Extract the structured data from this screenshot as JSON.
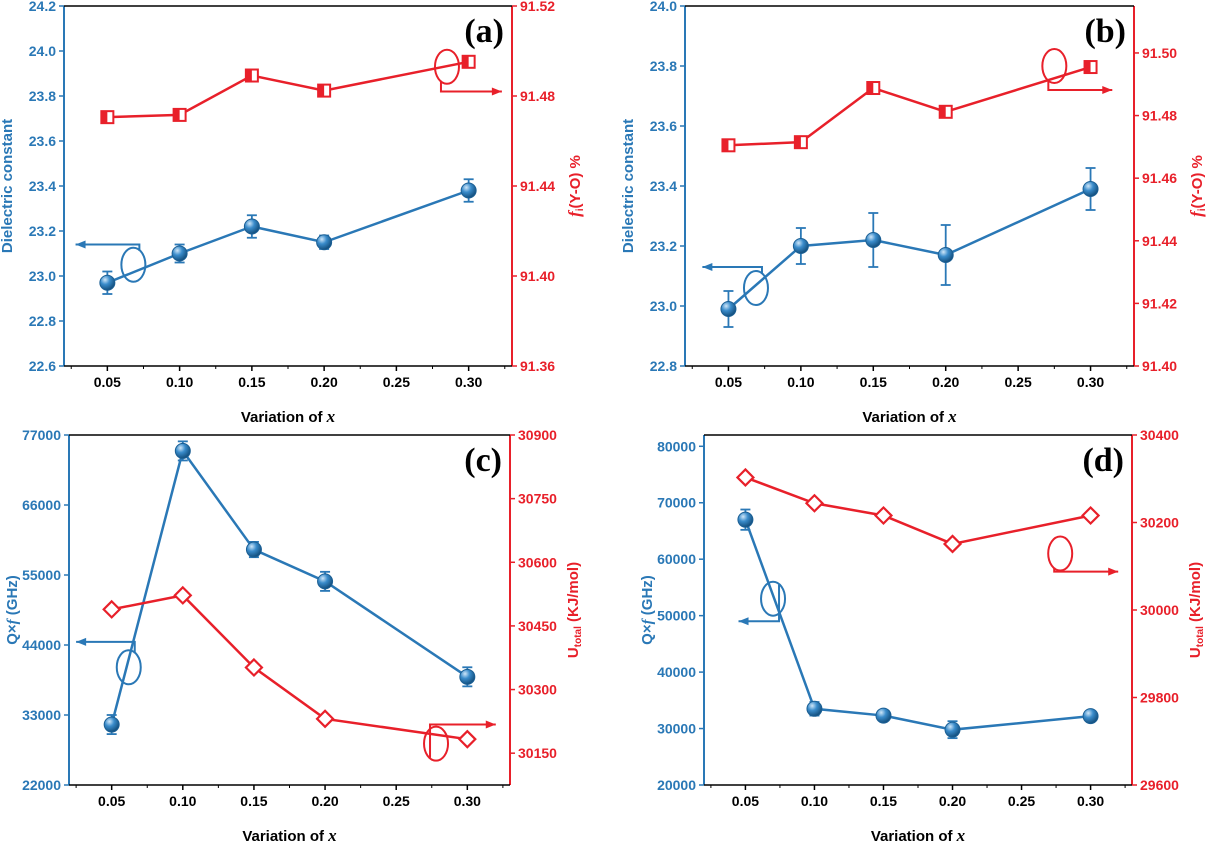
{
  "colors": {
    "left": "#2a78b6",
    "right": "#e8202a",
    "frame": "#000000"
  },
  "chart_data": [
    {
      "type": "line",
      "panel": "(a)",
      "xlabel": "Variation of x",
      "x_ticks": [
        "0.05",
        "0.10",
        "0.15",
        "0.20",
        "0.25",
        "0.30"
      ],
      "xlim": [
        0.02,
        0.33
      ],
      "left_axis": {
        "label": "Dielectric constant",
        "ylim": [
          22.6,
          24.2
        ],
        "ticks": [
          "22.6",
          "22.8",
          "23.0",
          "23.2",
          "23.4",
          "23.6",
          "23.8",
          "24.0",
          "24.2"
        ]
      },
      "right_axis": {
        "label_parts": [
          "f",
          "i",
          "(Y-O) %"
        ],
        "ylim": [
          91.36,
          91.52
        ],
        "ticks": [
          "91.36",
          "91.40",
          "91.44",
          "91.48",
          "91.52"
        ]
      },
      "series": [
        {
          "name": "Dielectric constant",
          "axis": "left",
          "marker": "sphere",
          "x": [
            0.05,
            0.1,
            0.15,
            0.2,
            0.3
          ],
          "values": [
            22.97,
            23.1,
            23.22,
            23.15,
            23.38
          ],
          "errors": [
            0.05,
            0.04,
            0.05,
            0.03,
            0.05
          ]
        },
        {
          "name": "fi(Y-O) %",
          "axis": "right",
          "marker": "half-square",
          "x": [
            0.05,
            0.1,
            0.15,
            0.2,
            0.3
          ],
          "values": [
            91.4706,
            91.4716,
            91.4891,
            91.4824,
            91.4952
          ]
        }
      ],
      "annotations": [
        {
          "kind": "left-pointer",
          "ellipse_at": {
            "x": 0.068,
            "y": 23.05
          },
          "arrow_to": {
            "x": 0.028,
            "y": 23.14
          }
        },
        {
          "kind": "right-pointer",
          "ellipse_at": {
            "x": 0.285,
            "y": 23.93
          },
          "arrow_to": {
            "x": 0.323,
            "y": 23.82
          }
        }
      ]
    },
    {
      "type": "line",
      "panel": "(b)",
      "xlabel": "Variation of x",
      "x_ticks": [
        "0.05",
        "0.10",
        "0.15",
        "0.20",
        "0.25",
        "0.30"
      ],
      "xlim": [
        0.02,
        0.33
      ],
      "left_axis": {
        "label": "Dielectric constant",
        "ylim": [
          22.8,
          24.0
        ],
        "ticks": [
          "22.8",
          "23.0",
          "23.2",
          "23.4",
          "23.6",
          "23.8",
          "24.0"
        ]
      },
      "right_axis": {
        "label_parts": [
          "f",
          "i",
          "(Y-O) %"
        ],
        "ylim": [
          91.4,
          91.515
        ],
        "ticks": [
          "91.40",
          "91.42",
          "91.44",
          "91.46",
          "91.48",
          "91.50"
        ]
      },
      "series": [
        {
          "name": "Dielectric constant",
          "axis": "left",
          "marker": "sphere",
          "x": [
            0.05,
            0.1,
            0.15,
            0.2,
            0.3
          ],
          "values": [
            22.99,
            23.2,
            23.22,
            23.17,
            23.39
          ],
          "errors": [
            0.06,
            0.06,
            0.09,
            0.1,
            0.07
          ]
        },
        {
          "name": "fi(Y-O) %",
          "axis": "right",
          "marker": "half-square",
          "x": [
            0.05,
            0.1,
            0.15,
            0.2,
            0.3
          ],
          "values": [
            91.4705,
            91.4715,
            91.4888,
            91.4812,
            91.4955
          ]
        }
      ],
      "annotations": [
        {
          "kind": "left-pointer",
          "ellipse_at": {
            "x": 0.069,
            "y": 23.06
          },
          "arrow_to": {
            "x": 0.032,
            "y": 23.13
          }
        },
        {
          "kind": "right-pointer",
          "ellipse_at": {
            "x": 0.275,
            "y": 23.8
          },
          "arrow_to": {
            "x": 0.315,
            "y": 23.72
          }
        }
      ]
    },
    {
      "type": "line",
      "panel": "(c)",
      "xlabel": "Variation of x",
      "x_ticks": [
        "0.05",
        "0.10",
        "0.15",
        "0.20",
        "0.25",
        "0.30"
      ],
      "xlim": [
        0.02,
        0.33
      ],
      "left_axis": {
        "label_parts": [
          "Q×",
          "f",
          " (GHz)"
        ],
        "ylim": [
          22000,
          77000
        ],
        "ticks": [
          "22000",
          "33000",
          "44000",
          "55000",
          "66000",
          "77000"
        ]
      },
      "right_axis": {
        "label_parts": [
          "U",
          "total",
          " (KJ/mol)"
        ],
        "ylim": [
          30075,
          30900
        ],
        "ticks": [
          "30150",
          "30300",
          "30450",
          "30600",
          "30750",
          "30900"
        ]
      },
      "series": [
        {
          "name": "Q×f (GHz)",
          "axis": "left",
          "marker": "sphere",
          "x": [
            0.05,
            0.1,
            0.15,
            0.2,
            0.3
          ],
          "values": [
            31500,
            74500,
            59000,
            54000,
            39000
          ],
          "errors": [
            1500,
            1500,
            1200,
            1500,
            1500
          ]
        },
        {
          "name": "Utotal (KJ/mol)",
          "axis": "right",
          "marker": "diamond",
          "x": [
            0.05,
            0.1,
            0.15,
            0.2,
            0.3
          ],
          "values": [
            30489,
            30522,
            30352,
            30231,
            30183
          ]
        }
      ],
      "annotations": [
        {
          "kind": "left-pointer",
          "ellipse_at": {
            "x": 0.062,
            "y": 40500
          },
          "arrow_to": {
            "x": 0.025,
            "y": 44500
          }
        },
        {
          "kind": "right-pointer",
          "ellipse_at": {
            "x": 0.278,
            "y": 28500
          },
          "arrow_to": {
            "x": 0.32,
            "y": 31500
          }
        }
      ]
    },
    {
      "type": "line",
      "panel": "(d)",
      "xlabel": "Variation of x",
      "x_ticks": [
        "0.05",
        "0.10",
        "0.15",
        "0.20",
        "0.25",
        "0.30"
      ],
      "xlim": [
        0.02,
        0.33
      ],
      "left_axis": {
        "label_parts": [
          "Q×",
          "f",
          " (GHz)"
        ],
        "ylim": [
          20000,
          82000
        ],
        "ticks": [
          "20000",
          "30000",
          "40000",
          "50000",
          "60000",
          "70000",
          "80000"
        ]
      },
      "right_axis": {
        "label_parts": [
          "U",
          "total",
          " (KJ/mol)"
        ],
        "ylim": [
          29600,
          30400
        ],
        "ticks": [
          "29600",
          "29800",
          "30000",
          "30200",
          "30400"
        ]
      },
      "series": [
        {
          "name": "Q×f (GHz)",
          "axis": "left",
          "marker": "sphere",
          "x": [
            0.05,
            0.1,
            0.15,
            0.2,
            0.3
          ],
          "values": [
            67000,
            33500,
            32300,
            29800,
            32200
          ],
          "errors": [
            1800,
            1200,
            900,
            1500,
            700
          ]
        },
        {
          "name": "Utotal (KJ/mol)",
          "axis": "right",
          "marker": "diamond",
          "x": [
            0.05,
            0.1,
            0.15,
            0.2,
            0.3
          ],
          "values": [
            30303,
            30244,
            30216,
            30151,
            30216
          ]
        }
      ],
      "annotations": [
        {
          "kind": "left-pointer",
          "ellipse_at": {
            "x": 0.07,
            "y": 53000
          },
          "arrow_to": {
            "x": 0.045,
            "y": 49000
          }
        },
        {
          "kind": "right-pointer",
          "ellipse_at": {
            "x": 0.278,
            "y": 61000
          },
          "arrow_to": {
            "x": 0.32,
            "y": 57800
          }
        }
      ]
    }
  ]
}
